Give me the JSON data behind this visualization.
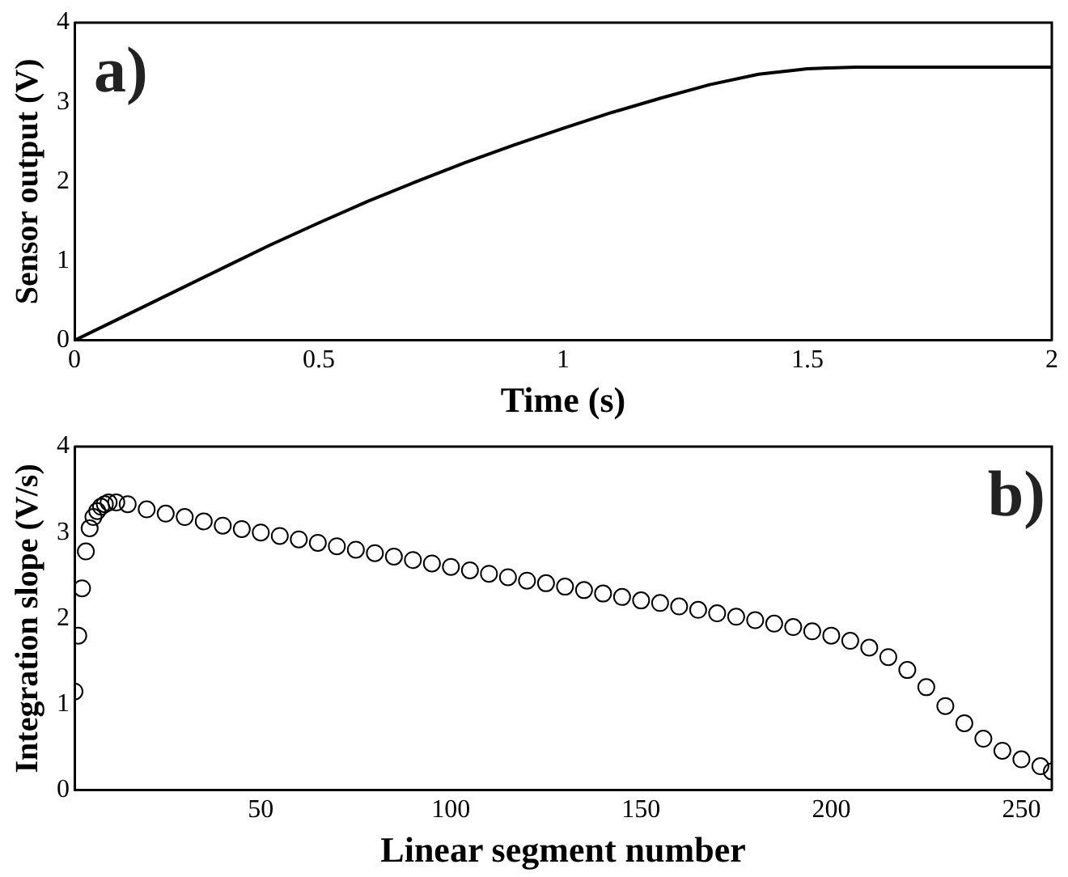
{
  "chart_data": [
    {
      "type": "line",
      "xlabel": "Time (s)",
      "ylabel": "Sensor output (V)",
      "annotations": [
        "a)"
      ],
      "xlim": [
        0,
        2
      ],
      "ylim": [
        0,
        4
      ],
      "xticks": [
        0,
        0.5,
        1,
        1.5,
        2
      ],
      "yticks": [
        0,
        1,
        2,
        3,
        4
      ],
      "grid": false,
      "legend": false,
      "marker": "none",
      "line_style": "solid",
      "series": [
        {
          "color": "#000000",
          "x": [
            0,
            0.1,
            0.2,
            0.3,
            0.4,
            0.5,
            0.6,
            0.7,
            0.8,
            0.9,
            1.0,
            1.1,
            1.2,
            1.3,
            1.4,
            1.5,
            1.6,
            1.7,
            2.0
          ],
          "values": [
            0,
            0.3,
            0.6,
            0.9,
            1.2,
            1.48,
            1.75,
            2.0,
            2.24,
            2.46,
            2.67,
            2.87,
            3.05,
            3.22,
            3.35,
            3.42,
            3.44,
            3.44,
            3.44
          ]
        }
      ]
    },
    {
      "type": "scatter",
      "xlabel": "Linear segment number",
      "ylabel": "Integration slope (V/s)",
      "annotations": [
        "b)"
      ],
      "xlim": [
        1,
        258
      ],
      "ylim": [
        0,
        4
      ],
      "xticks": [
        50,
        100,
        150,
        200,
        250
      ],
      "yticks": [
        0,
        1,
        2,
        3,
        4
      ],
      "grid": false,
      "legend": false,
      "marker": "circle",
      "series": [
        {
          "color": "#000000",
          "x": [
            1,
            2,
            3,
            4,
            5,
            6,
            7,
            8,
            9,
            10,
            12,
            15,
            20,
            25,
            30,
            35,
            40,
            45,
            50,
            55,
            60,
            65,
            70,
            75,
            80,
            85,
            90,
            95,
            100,
            105,
            110,
            115,
            120,
            125,
            130,
            135,
            140,
            145,
            150,
            155,
            160,
            165,
            170,
            175,
            180,
            185,
            190,
            195,
            200,
            205,
            210,
            215,
            220,
            225,
            230,
            235,
            240,
            245,
            250,
            255,
            258
          ],
          "values": [
            1.15,
            1.8,
            2.35,
            2.78,
            3.05,
            3.18,
            3.25,
            3.3,
            3.33,
            3.35,
            3.35,
            3.33,
            3.27,
            3.22,
            3.18,
            3.13,
            3.08,
            3.04,
            3.0,
            2.96,
            2.92,
            2.88,
            2.84,
            2.8,
            2.76,
            2.72,
            2.68,
            2.64,
            2.6,
            2.56,
            2.52,
            2.48,
            2.44,
            2.41,
            2.37,
            2.33,
            2.29,
            2.25,
            2.21,
            2.18,
            2.14,
            2.1,
            2.06,
            2.02,
            1.98,
            1.94,
            1.9,
            1.85,
            1.8,
            1.74,
            1.66,
            1.55,
            1.4,
            1.2,
            0.98,
            0.78,
            0.6,
            0.46,
            0.36,
            0.28,
            0.22
          ]
        }
      ]
    }
  ]
}
